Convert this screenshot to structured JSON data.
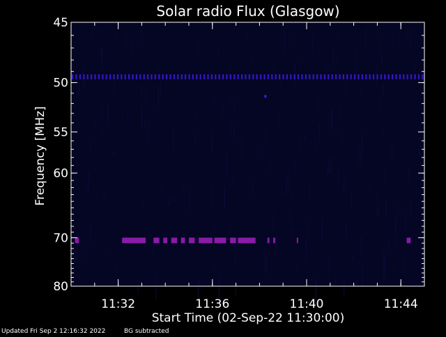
{
  "chart_data": {
    "type": "heatmap",
    "title": "Solar radio Flux (Glasgow)",
    "xlabel": "Start Time (02-Sep-22 11:30:00)",
    "ylabel": "Frequency [MHz]",
    "x_unit": "minutes",
    "xlim": [
      "11:30:00",
      "11:45:00"
    ],
    "ylim": [
      45,
      80
    ],
    "x_tick_labels": [
      "11:32",
      "11:36",
      "11:40",
      "11:44"
    ],
    "y_tick_labels": [
      "45",
      "50",
      "55",
      "60",
      "70",
      "80"
    ],
    "footer_updated": "Updated Fri Sep  2 12:16:32 2022",
    "footer_note": "BG subtracted",
    "background_color": "#050524",
    "features": [
      {
        "kind": "band",
        "frequency": 49.5,
        "color": "#3318cc",
        "time_start": "11:30:00",
        "time_end": "11:45:00",
        "intensity": "medium"
      },
      {
        "kind": "band",
        "frequency": 70.5,
        "color": "#8a1aa8",
        "segments": [
          [
            "11:30:10",
            "11:30:20"
          ],
          [
            "11:32:10",
            "11:33:10"
          ],
          [
            "11:33:30",
            "11:33:45"
          ],
          [
            "11:33:55",
            "11:34:05"
          ],
          [
            "11:34:15",
            "11:34:30"
          ],
          [
            "11:34:40",
            "11:34:50"
          ],
          [
            "11:35:00",
            "11:35:15"
          ],
          [
            "11:35:25",
            "11:36:00"
          ],
          [
            "11:36:05",
            "11:36:35"
          ],
          [
            "11:36:45",
            "11:37:00"
          ],
          [
            "11:37:05",
            "11:37:50"
          ],
          [
            "11:38:20",
            "11:38:25"
          ],
          [
            "11:38:35",
            "11:38:40"
          ],
          [
            "11:39:35",
            "11:39:38"
          ],
          [
            "11:44:15",
            "11:44:25"
          ]
        ]
      },
      {
        "kind": "spot",
        "frequency": 51.3,
        "time": "11:38:15",
        "color": "#2a2ae6"
      }
    ]
  }
}
